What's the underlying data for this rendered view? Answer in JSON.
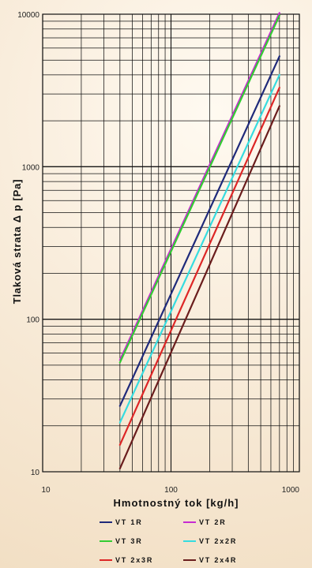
{
  "chart_data": {
    "type": "line",
    "title": "",
    "xlabel": "Hmotnostný tok [kg/h]",
    "ylabel": "Tlaková strata Δ p [Pa]",
    "x_scale": "log",
    "y_scale": "log",
    "xlim": [
      10,
      1000
    ],
    "ylim": [
      10,
      10000
    ],
    "x_ticks": [
      "10",
      "100",
      "1000"
    ],
    "y_ticks": [
      "10",
      "100",
      "1000",
      "10000"
    ],
    "grid": true,
    "legend_position": "bottom",
    "series": [
      {
        "name": "VT 1R",
        "color": "#1f2a7a",
        "x": [
          40,
          700
        ],
        "y": [
          27,
          5300
        ]
      },
      {
        "name": "VT 2R",
        "color": "#c72bd2",
        "x": [
          40,
          700
        ],
        "y": [
          54,
          10200
        ]
      },
      {
        "name": "VT 3R",
        "color": "#33cc33",
        "x": [
          40,
          700
        ],
        "y": [
          52,
          9800
        ]
      },
      {
        "name": "VT 2x2R",
        "color": "#36dce0",
        "x": [
          40,
          700
        ],
        "y": [
          21,
          4000
        ]
      },
      {
        "name": "VT 2x3R",
        "color": "#dd2626",
        "x": [
          40,
          700
        ],
        "y": [
          15,
          3300
        ]
      },
      {
        "name": "VT 2x4R",
        "color": "#6a1d1d",
        "x": [
          40,
          700
        ],
        "y": [
          10.5,
          2500
        ]
      }
    ]
  }
}
